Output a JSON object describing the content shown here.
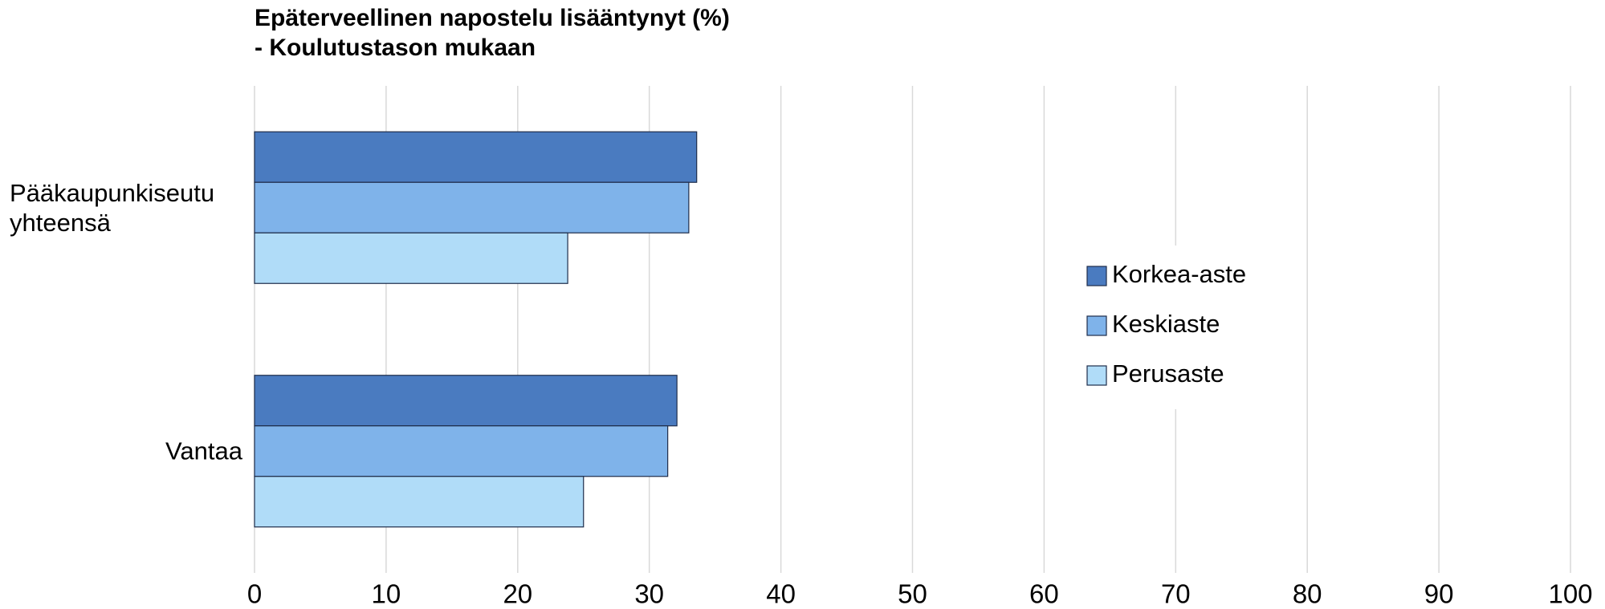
{
  "chart_data": {
    "type": "barh",
    "title": "Epäterveellinen napostelu lisääntynyt (%)",
    "subtitle": "- Koulutustason mukaan",
    "categories": [
      "Pääkaupunkiseutu yhteensä",
      "Vantaa"
    ],
    "series": [
      {
        "name": "Korkea-aste",
        "color": "#4a7bc0",
        "values": [
          33.6,
          32.1
        ]
      },
      {
        "name": "Keskiaste",
        "color": "#7fb3ea",
        "values": [
          33.0,
          31.4
        ]
      },
      {
        "name": "Perusaste",
        "color": "#b0dcf8",
        "values": [
          23.8,
          25.0
        ]
      }
    ],
    "xlim": [
      0,
      100
    ],
    "xticks": [
      0,
      10,
      20,
      30,
      40,
      50,
      60,
      70,
      80,
      90,
      100
    ],
    "grid": true,
    "legend": "right"
  }
}
